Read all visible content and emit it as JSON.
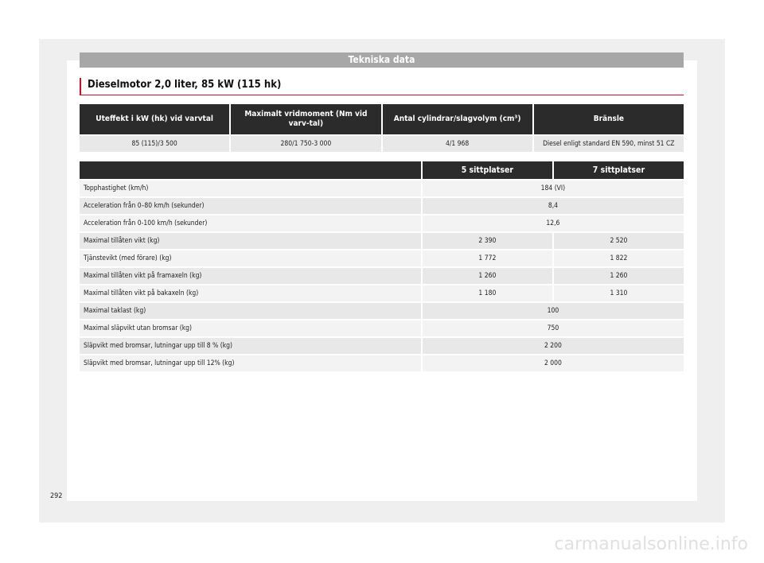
{
  "section_header": "Tekniska data",
  "title": "Dieselmotor 2,0 liter, 85 kW (115 hk)",
  "table1": {
    "headers": [
      "Uteffekt i kW (hk) vid varvtal",
      "Maximalt vridmoment (Nm vid varv-tal)",
      "Antal cylindrar/slagvolym (cm³)",
      "Bränsle"
    ],
    "row": [
      "85 (115)/3 500",
      "280/1 750-3 000",
      "4/1 968",
      "Diesel enligt standard EN 590, minst 51 CZ"
    ]
  },
  "table2": {
    "headers": [
      "",
      "5 sittplatser",
      "7 sittplatser"
    ],
    "rows": [
      {
        "label": "Topphastighet (km/h)",
        "value": "184 (VI)"
      },
      {
        "label": "Acceleration från 0–80 km/h (sekunder)",
        "value": "8,4"
      },
      {
        "label": "Acceleration från 0-100 km/h (sekunder)",
        "value": "12,6"
      },
      {
        "label": "Maximal tillåten vikt (kg)",
        "v5": "2 390",
        "v7": "2 520"
      },
      {
        "label": "Tjänstevikt (med förare) (kg)",
        "v5": "1 772",
        "v7": "1 822"
      },
      {
        "label": "Maximal tillåten vikt på framaxeln (kg)",
        "v5": "1 260",
        "v7": "1 260"
      },
      {
        "label": "Maximal tillåten vikt på bakaxeln (kg)",
        "v5": "1 180",
        "v7": "1 310"
      },
      {
        "label": "Maximal taklast (kg)",
        "value": "100"
      },
      {
        "label": "Maximal släpvikt utan bromsar (kg)",
        "value": "750"
      },
      {
        "label": "Släpvikt med bromsar, lutningar upp till 8 % (kg)",
        "value": "2 200"
      },
      {
        "label": "Släpvikt med bromsar, lutningar upp till 12% (kg)",
        "value": "2 000"
      }
    ]
  },
  "page_number": "292",
  "watermark": "carmanualsonline.info"
}
